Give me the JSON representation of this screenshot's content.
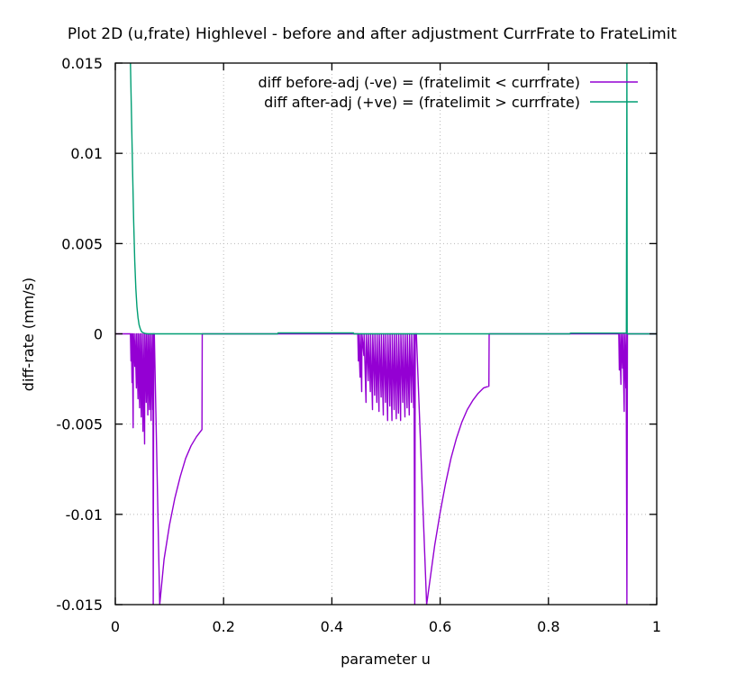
{
  "chart_data": {
    "type": "line",
    "title": "Plot 2D (u,frate) Highlevel - before and after adjustment CurrFrate to FrateLimit",
    "xlabel": "parameter u",
    "ylabel": "diff-rate (mm/s)",
    "xlim": [
      0,
      1
    ],
    "ylim": [
      -0.015,
      0.015
    ],
    "x_ticks": [
      {
        "value": 0,
        "label": "0"
      },
      {
        "value": 0.2,
        "label": "0.2"
      },
      {
        "value": 0.4,
        "label": "0.4"
      },
      {
        "value": 0.6,
        "label": "0.6"
      },
      {
        "value": 0.8,
        "label": "0.8"
      },
      {
        "value": 1,
        "label": "1"
      }
    ],
    "y_ticks": [
      {
        "value": 0.015,
        "label": "0.015"
      },
      {
        "value": 0.01,
        "label": "0.01"
      },
      {
        "value": 0.005,
        "label": "0.005"
      },
      {
        "value": 0,
        "label": "0"
      },
      {
        "value": -0.005,
        "label": "-0.005"
      },
      {
        "value": -0.01,
        "label": "-0.01"
      },
      {
        "value": -0.015,
        "label": "-0.015"
      }
    ],
    "grid": true,
    "legend_position": "top-right",
    "series": [
      {
        "name": "diff before-adj (-ve) = (fratelimit < currfrate)",
        "color": "#9400d3",
        "points": [
          [
            0,
            0
          ],
          [
            0.028,
            0
          ],
          [
            0.029,
            -0.0015
          ],
          [
            0.0295,
            0
          ],
          [
            0.031,
            -0.0027
          ],
          [
            0.0315,
            0
          ],
          [
            0.033,
            -0.0052
          ],
          [
            0.0335,
            0
          ],
          [
            0.036,
            -0.0018
          ],
          [
            0.0365,
            0
          ],
          [
            0.039,
            -0.003
          ],
          [
            0.0395,
            0
          ],
          [
            0.042,
            -0.0036
          ],
          [
            0.0425,
            0
          ],
          [
            0.045,
            -0.0041
          ],
          [
            0.0455,
            0
          ],
          [
            0.048,
            -0.0046
          ],
          [
            0.0485,
            0
          ],
          [
            0.051,
            -0.0054
          ],
          [
            0.0515,
            0
          ],
          [
            0.054,
            -0.0061
          ],
          [
            0.0545,
            0
          ],
          [
            0.057,
            -0.0038
          ],
          [
            0.0575,
            0
          ],
          [
            0.06,
            -0.0045
          ],
          [
            0.0605,
            0
          ],
          [
            0.063,
            -0.0042
          ],
          [
            0.0635,
            0
          ],
          [
            0.066,
            -0.0048
          ],
          [
            0.0665,
            0
          ],
          [
            0.069,
            -0.0042
          ],
          [
            0.0695,
            0
          ],
          [
            0.07,
            -0.015
          ],
          [
            0.071,
            0
          ],
          [
            0.072,
            0
          ],
          [
            0.082,
            -0.015
          ],
          [
            0.09,
            -0.0125
          ],
          [
            0.1,
            -0.0106
          ],
          [
            0.11,
            -0.0091
          ],
          [
            0.12,
            -0.0079
          ],
          [
            0.13,
            -0.0069
          ],
          [
            0.14,
            -0.0062
          ],
          [
            0.15,
            -0.0057
          ],
          [
            0.16,
            -0.0053
          ],
          [
            0.1605,
            0
          ],
          [
            0.3,
            0
          ],
          [
            0.448,
            0
          ],
          [
            0.449,
            -0.0015
          ],
          [
            0.4495,
            0
          ],
          [
            0.452,
            -0.0024
          ],
          [
            0.4525,
            0
          ],
          [
            0.455,
            -0.0032
          ],
          [
            0.4555,
            0
          ],
          [
            0.459,
            -0.0012
          ],
          [
            0.4595,
            0
          ],
          [
            0.463,
            -0.0038
          ],
          [
            0.4635,
            0
          ],
          [
            0.467,
            -0.0026
          ],
          [
            0.4675,
            0
          ],
          [
            0.471,
            -0.0032
          ],
          [
            0.4715,
            0
          ],
          [
            0.475,
            -0.0042
          ],
          [
            0.4755,
            0
          ],
          [
            0.479,
            -0.0034
          ],
          [
            0.4795,
            0
          ],
          [
            0.483,
            -0.0038
          ],
          [
            0.4835,
            0
          ],
          [
            0.487,
            -0.0043
          ],
          [
            0.4875,
            0
          ],
          [
            0.491,
            -0.0035
          ],
          [
            0.4915,
            0
          ],
          [
            0.495,
            -0.0045
          ],
          [
            0.4955,
            0
          ],
          [
            0.499,
            -0.0038
          ],
          [
            0.4995,
            0
          ],
          [
            0.503,
            -0.0048
          ],
          [
            0.5035,
            0
          ],
          [
            0.507,
            -0.004
          ],
          [
            0.5075,
            0
          ],
          [
            0.511,
            -0.0048
          ],
          [
            0.5115,
            0
          ],
          [
            0.515,
            -0.0042
          ],
          [
            0.5155,
            0
          ],
          [
            0.519,
            -0.0047
          ],
          [
            0.5195,
            0
          ],
          [
            0.523,
            -0.0044
          ],
          [
            0.5235,
            0
          ],
          [
            0.527,
            -0.0048
          ],
          [
            0.5275,
            0
          ],
          [
            0.531,
            -0.0038
          ],
          [
            0.5315,
            0
          ],
          [
            0.535,
            -0.0046
          ],
          [
            0.5355,
            0
          ],
          [
            0.539,
            -0.0041
          ],
          [
            0.5395,
            0
          ],
          [
            0.543,
            -0.0045
          ],
          [
            0.5435,
            0
          ],
          [
            0.547,
            -0.0038
          ],
          [
            0.5475,
            0
          ],
          [
            0.551,
            -0.0041
          ],
          [
            0.5515,
            0
          ],
          [
            0.553,
            -0.015
          ],
          [
            0.554,
            0
          ],
          [
            0.556,
            0
          ],
          [
            0.575,
            -0.015
          ],
          [
            0.59,
            -0.0117
          ],
          [
            0.6,
            -0.0099
          ],
          [
            0.61,
            -0.0083
          ],
          [
            0.62,
            -0.0069
          ],
          [
            0.63,
            -0.0058
          ],
          [
            0.64,
            -0.0049
          ],
          [
            0.65,
            -0.0042
          ],
          [
            0.66,
            -0.0037
          ],
          [
            0.67,
            -0.0033
          ],
          [
            0.68,
            -0.003
          ],
          [
            0.69,
            -0.0029
          ],
          [
            0.6905,
            0
          ],
          [
            0.93,
            0
          ],
          [
            0.931,
            -0.002
          ],
          [
            0.9315,
            0
          ],
          [
            0.934,
            -0.0028
          ],
          [
            0.9345,
            0
          ],
          [
            0.937,
            -0.0019
          ],
          [
            0.9375,
            0
          ],
          [
            0.94,
            -0.0043
          ],
          [
            0.9405,
            0
          ],
          [
            0.943,
            -0.003
          ],
          [
            0.9435,
            0
          ],
          [
            0.945,
            -0.015
          ],
          [
            0.946,
            0
          ],
          [
            0.948,
            0
          ],
          [
            1,
            0
          ]
        ]
      },
      {
        "name": "diff after-adj (+ve) = (fratelimit > currfrate)",
        "color": "#009e73",
        "points": [
          [
            0.028,
            0.015
          ],
          [
            0.03,
            0.012
          ],
          [
            0.032,
            0.009
          ],
          [
            0.034,
            0.0062
          ],
          [
            0.036,
            0.004
          ],
          [
            0.038,
            0.0025
          ],
          [
            0.04,
            0.0015
          ],
          [
            0.042,
            0.0009
          ],
          [
            0.044,
            0.0005
          ],
          [
            0.046,
            0.0003
          ],
          [
            0.048,
            0.00015
          ],
          [
            0.05,
            8e-05
          ],
          [
            0.055,
            2e-05
          ],
          [
            0.06,
            0
          ],
          [
            0.3,
            0
          ],
          [
            0.3005,
            5e-05
          ],
          [
            0.44,
            5e-05
          ],
          [
            0.4405,
            0
          ],
          [
            0.84,
            0
          ],
          [
            0.8405,
            4e-05
          ],
          [
            0.944,
            4e-05
          ],
          [
            0.945,
            0.015
          ],
          [
            0.9455,
            0
          ],
          [
            1,
            0
          ]
        ]
      }
    ]
  }
}
